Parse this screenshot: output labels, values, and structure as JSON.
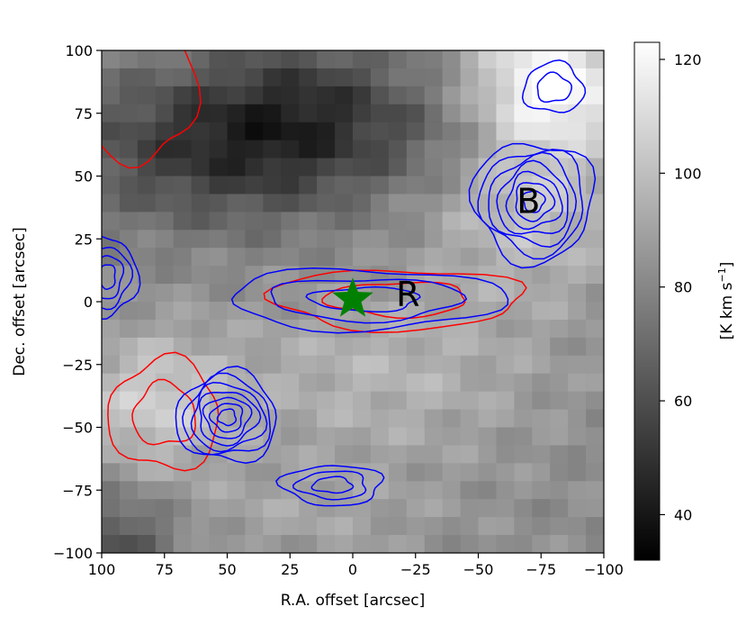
{
  "chart_data": {
    "type": "heatmap",
    "xlabel": "R.A. offset [arcsec]",
    "ylabel": "Dec. offset [arcsec]",
    "colorbar_label": "[K km s$^{-1}$]",
    "colorbar_label_parts": {
      "base": "[K km s",
      "sup": "−1",
      "end": "]"
    },
    "xlim": [
      100,
      -100
    ],
    "ylim": [
      -100,
      100
    ],
    "clim": [
      32,
      123
    ],
    "x_ticks": [
      100,
      75,
      50,
      25,
      0,
      -25,
      -50,
      -75,
      -100
    ],
    "y_ticks": [
      100,
      75,
      50,
      25,
      0,
      -25,
      -50,
      -75,
      -100
    ],
    "x_tick_labels": [
      "100",
      "75",
      "50",
      "25",
      "0",
      "−25",
      "−50",
      "−75",
      "−100"
    ],
    "y_tick_labels": [
      "100",
      "75",
      "50",
      "25",
      "0",
      "−25",
      "−50",
      "−75",
      "−100"
    ],
    "colorbar_ticks": [
      40,
      60,
      80,
      100,
      120
    ],
    "colorbar_tick_labels": [
      "40",
      "60",
      "80",
      "100",
      "120"
    ],
    "colormap": "gray",
    "colors": {
      "blue_contours": "#0000ff",
      "red_contours": "#ff0000",
      "marker": "#008000"
    },
    "marker": {
      "shape": "star",
      "x": 0,
      "y": 1
    },
    "annotations": [
      {
        "text": "R",
        "x": -22,
        "y": 2
      },
      {
        "text": "B",
        "x": -70,
        "y": 39
      }
    ],
    "grid": false,
    "blue_contours": [
      {
        "name": "B",
        "center": [
          -72,
          40
        ],
        "radius": [
          24,
          24
        ],
        "levels": 7
      },
      {
        "name": "SE",
        "center": [
          50,
          -46
        ],
        "radius": [
          20,
          18
        ],
        "levels": 7
      },
      {
        "name": "E",
        "center": [
          98,
          10
        ],
        "radius": [
          12,
          16
        ],
        "levels": 4
      },
      {
        "name": "S",
        "center": [
          8,
          -73
        ],
        "radius": [
          20,
          8
        ],
        "levels": 3
      },
      {
        "name": "N",
        "center": [
          -80,
          85
        ],
        "radius": [
          12,
          10
        ],
        "levels": 2
      },
      {
        "name": "R",
        "center": [
          -5,
          1
        ],
        "radius": [
          55,
          12
        ],
        "levels": 3
      }
    ],
    "red_contours": [
      {
        "name": "R",
        "center": [
          -18,
          1
        ],
        "radius": [
          50,
          12
        ],
        "levels": 2
      },
      {
        "name": "SE",
        "center": [
          75,
          -45
        ],
        "radius": [
          22,
          22
        ],
        "levels": 2
      },
      {
        "name": "NE",
        "center": [
          85,
          85
        ],
        "radius": [
          22,
          30
        ],
        "levels": 1
      }
    ]
  }
}
